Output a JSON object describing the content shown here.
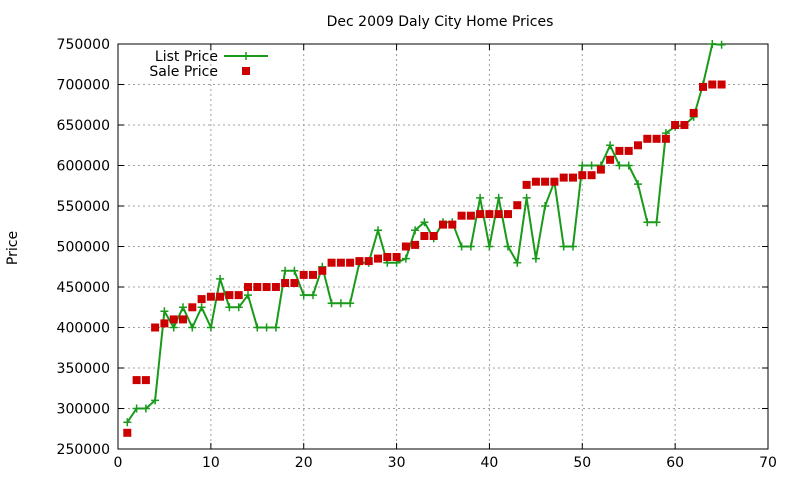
{
  "chart_data": {
    "type": "line",
    "title": "Dec 2009 Daly City Home Prices",
    "xlabel": "",
    "ylabel": "Price",
    "xlim": [
      0,
      70
    ],
    "ylim": [
      250000,
      750000
    ],
    "x_ticks": [
      "0",
      "10",
      "20",
      "30",
      "40",
      "50",
      "60",
      "70"
    ],
    "y_ticks": [
      "250000",
      "300000",
      "350000",
      "400000",
      "450000",
      "500000",
      "550000",
      "600000",
      "650000",
      "700000",
      "750000"
    ],
    "grid": true,
    "legend_position": "top-left",
    "series": [
      {
        "name": "List Price",
        "style": "line with plus markers",
        "color": "#1a9a1a",
        "x": [
          1,
          2,
          3,
          4,
          5,
          6,
          7,
          8,
          9,
          10,
          11,
          12,
          13,
          14,
          15,
          16,
          17,
          18,
          19,
          20,
          21,
          22,
          23,
          24,
          25,
          26,
          27,
          28,
          29,
          30,
          31,
          32,
          33,
          34,
          35,
          36,
          37,
          38,
          39,
          40,
          41,
          42,
          43,
          44,
          45,
          46,
          47,
          48,
          49,
          50,
          51,
          52,
          53,
          54,
          55,
          56,
          57,
          58,
          59,
          60,
          61,
          62,
          63,
          64,
          65
        ],
        "values": [
          283000,
          300000,
          300000,
          310000,
          420000,
          400000,
          425000,
          400000,
          425000,
          400000,
          460000,
          425000,
          425000,
          440000,
          400000,
          400000,
          400000,
          470000,
          470000,
          440000,
          440000,
          475000,
          430000,
          430000,
          430000,
          480000,
          480000,
          520000,
          480000,
          480000,
          485000,
          520000,
          530000,
          510000,
          530000,
          530000,
          500000,
          500000,
          560000,
          500000,
          560000,
          500000,
          480000,
          560000,
          485000,
          550000,
          580000,
          500000,
          500000,
          600000,
          600000,
          600000,
          625000,
          600000,
          600000,
          577000,
          530000,
          530000,
          640000,
          648000,
          650000,
          660000,
          700000,
          750000,
          749000
        ]
      },
      {
        "name": "Sale Price",
        "style": "square markers",
        "color": "#cc0000",
        "x": [
          1,
          2,
          3,
          4,
          5,
          6,
          7,
          8,
          9,
          10,
          11,
          12,
          13,
          14,
          15,
          16,
          17,
          18,
          19,
          20,
          21,
          22,
          23,
          24,
          25,
          26,
          27,
          28,
          29,
          30,
          31,
          32,
          33,
          34,
          35,
          36,
          37,
          38,
          39,
          40,
          41,
          42,
          43,
          44,
          45,
          46,
          47,
          48,
          49,
          50,
          51,
          52,
          53,
          54,
          55,
          56,
          57,
          58,
          59,
          60,
          61,
          62,
          63,
          64,
          65
        ],
        "values": [
          270000,
          335000,
          335000,
          400000,
          405000,
          410000,
          410000,
          425000,
          435000,
          438000,
          438000,
          440000,
          440000,
          450000,
          450000,
          450000,
          450000,
          455000,
          455000,
          465000,
          465000,
          470000,
          480000,
          480000,
          480000,
          482000,
          482000,
          485000,
          487000,
          487000,
          500000,
          502000,
          513000,
          513000,
          527000,
          527000,
          538000,
          538000,
          540000,
          540000,
          540000,
          540000,
          551000,
          576000,
          580000,
          580000,
          580000,
          585000,
          585000,
          588000,
          588000,
          595000,
          607000,
          618000,
          618000,
          625000,
          633000,
          633000,
          633000,
          650000,
          650000,
          665000,
          697000,
          700000,
          700000
        ]
      }
    ]
  }
}
